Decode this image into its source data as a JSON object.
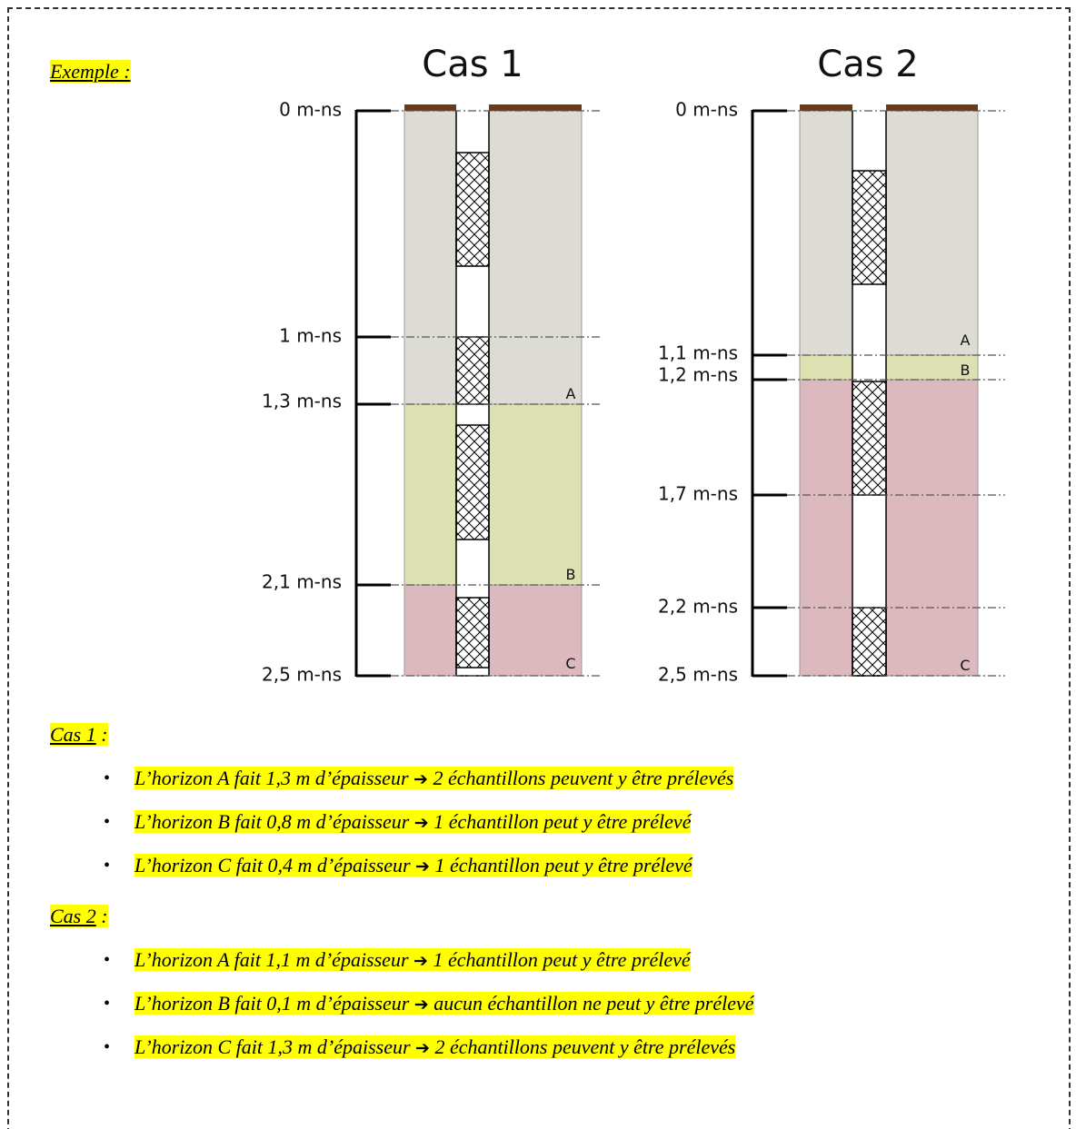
{
  "example_label": "Exemple :",
  "diagram": {
    "cases": [
      {
        "title": "Cas 1",
        "depths": [
          "0 m-ns",
          "1 m-ns",
          "1,3 m-ns",
          "2,1 m-ns",
          "2,5 m-ns"
        ],
        "horizons": [
          "A",
          "B",
          "C"
        ]
      },
      {
        "title": "Cas 2",
        "depths": [
          "0 m-ns",
          "1,1 m-ns",
          "1,2 m-ns",
          "1,7 m-ns",
          "2,2 m-ns",
          "2,5 m-ns"
        ],
        "horizons": [
          "A",
          "B",
          "C"
        ]
      }
    ]
  },
  "sections": [
    {
      "heading": "Cas 1",
      "separator": ":",
      "items": [
        {
          "text": "L’horizon A fait 1,3 m d’épaisseur",
          "arrow": "➔",
          "result": "2 échantillons peuvent y être prélevés"
        },
        {
          "text": "L’horizon B fait 0,8 m d’épaisseur",
          "arrow": "➔",
          "result": "1 échantillon peut y être prélevé"
        },
        {
          "text": "L’horizon C fait 0,4 m d’épaisseur",
          "arrow": "➔",
          "result": "1 échantillon peut y être prélevé"
        }
      ]
    },
    {
      "heading": "Cas 2",
      "separator": ":",
      "items": [
        {
          "text": "L’horizon A fait 1,1 m d’épaisseur",
          "arrow": "➔",
          "result": "1 échantillon peut y être prélevé"
        },
        {
          "text": "L’horizon B fait 0,1 m d’épaisseur",
          "arrow": "➔",
          "result": "aucun échantillon ne peut y être prélevé"
        },
        {
          "text": "L’horizon C fait 1,3 m d’épaisseur",
          "arrow": "➔",
          "result": "2 échantillons peuvent y être prélevés"
        }
      ]
    }
  ]
}
